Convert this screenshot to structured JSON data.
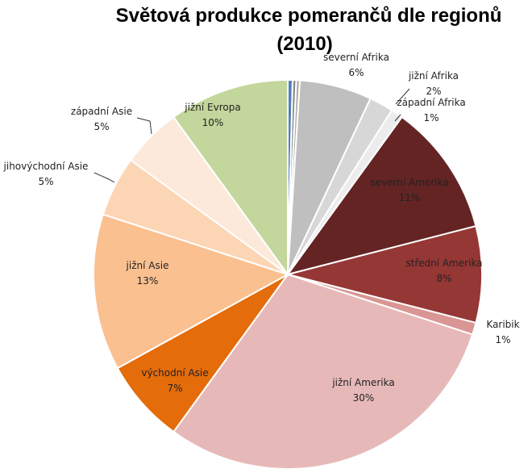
{
  "chart_data": {
    "type": "pie",
    "title_lines": [
      "Světová produkce pomerančů dle regionů",
      "(2010)"
    ],
    "start_angle_deg": 0,
    "direction": "clockwise",
    "slices": [
      {
        "label": "",
        "value": 0.4,
        "pct_text": "",
        "color": "#4f81bd"
      },
      {
        "label": "",
        "value": 0.3,
        "pct_text": "",
        "color": "#8a8a8a"
      },
      {
        "label": "",
        "value": 0.3,
        "pct_text": "",
        "color": "#b0b0b0"
      },
      {
        "label": "severní Afrika",
        "value": 6,
        "pct_text": "6%",
        "color": "#bfbfbf"
      },
      {
        "label": "jižní Afrika",
        "value": 2,
        "pct_text": "2%",
        "color": "#d7d7d7"
      },
      {
        "label": "západní Afrika",
        "value": 1,
        "pct_text": "1%",
        "color": "#ececec"
      },
      {
        "label": "severní Amerika",
        "value": 11,
        "pct_text": "11%",
        "color": "#632423"
      },
      {
        "label": "střední Amerika",
        "value": 8,
        "pct_text": "8%",
        "color": "#953735"
      },
      {
        "label": "Karibik",
        "value": 1,
        "pct_text": "1%",
        "color": "#d99694"
      },
      {
        "label": "jižní Amerika",
        "value": 30,
        "pct_text": "30%",
        "color": "#e6b9b8"
      },
      {
        "label": "východní Asie",
        "value": 7,
        "pct_text": "7%",
        "color": "#e46c0a"
      },
      {
        "label": "jižní Asie",
        "value": 13,
        "pct_text": "13%",
        "color": "#fac090"
      },
      {
        "label": "jihovýchodní Asie",
        "value": 5,
        "pct_text": "5%",
        "color": "#fcd5b4"
      },
      {
        "label": "západní Asie",
        "value": 5,
        "pct_text": "5%",
        "color": "#fde9d9"
      },
      {
        "label": "jižní Evropa",
        "value": 10,
        "pct_text": "10%",
        "color": "#c3d69b"
      }
    ]
  }
}
